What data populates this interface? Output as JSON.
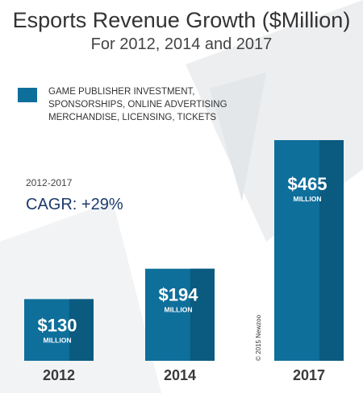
{
  "chart_data": {
    "type": "bar",
    "title": "Esports Revenue Growth ($Million)",
    "subtitle": "For 2012, 2014 and 2017",
    "categories": [
      "2012",
      "2014",
      "2017"
    ],
    "values": [
      130,
      194,
      465
    ],
    "value_labels": [
      "$130",
      "$194",
      "$465"
    ],
    "unit_label": "MILLION",
    "series": [
      {
        "name": "GAME PUBLISHER INVESTMENT, SPONSORSHIPS, ONLINE ADVERTISING MERCHANDISE, LICENSING, TICKETS",
        "values": [
          130,
          194,
          465
        ]
      }
    ],
    "legend_position": "top-left",
    "grid": false,
    "ylim": [
      0,
      465
    ]
  },
  "annotation": {
    "period": "2012-2017",
    "cagr": "CAGR: +29%"
  },
  "copyright": "© 2015 Newzoo",
  "colors": {
    "bar_front": "#0f6f9b",
    "bar_side": "#0b5a80",
    "year_label": "#3a3a3a",
    "background_shape": "#e9ecef"
  }
}
